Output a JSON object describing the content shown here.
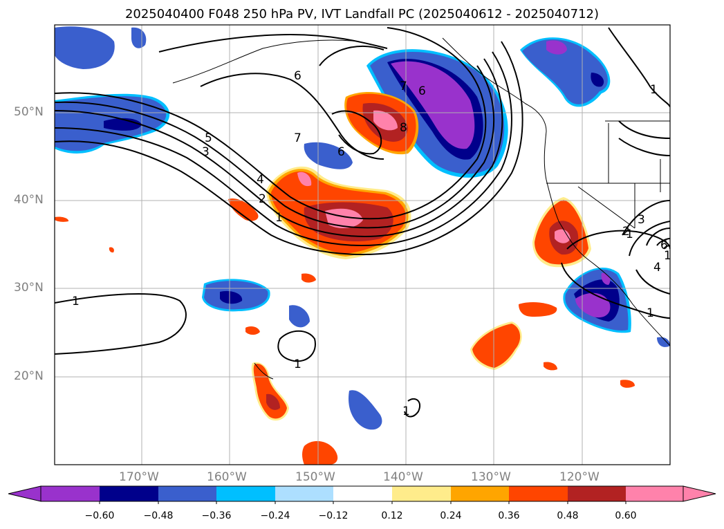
{
  "title": "2025040400 F048 250 hPa PV, IVT Landfall PC (2025040612 - 2025040712)",
  "map": {
    "lat_labels": [
      "50°N",
      "40°N",
      "30°N",
      "20°N"
    ],
    "lon_labels": [
      "170°W",
      "160°W",
      "150°W",
      "140°W",
      "130°W",
      "120°W"
    ],
    "contour_labels": [
      "1",
      "1",
      "1",
      "1",
      "1",
      "1",
      "1",
      "2",
      "3",
      "4",
      "5",
      "6",
      "6",
      "6",
      "7",
      "7",
      "8",
      "1",
      "2",
      "3",
      "4",
      "6"
    ]
  },
  "colorbar": {
    "ticks": [
      "−0.60",
      "−0.48",
      "−0.36",
      "−0.24",
      "−0.12",
      "0.12",
      "0.24",
      "0.36",
      "0.48",
      "0.60"
    ],
    "colors": [
      "#9932CC",
      "#00008B",
      "#3A5FCD",
      "#00BFFF",
      "#ADDFFF",
      "#FFFFFF",
      "#FFEC8B",
      "#FFA500",
      "#FF4500",
      "#B22222",
      "#FF82AB"
    ]
  }
}
